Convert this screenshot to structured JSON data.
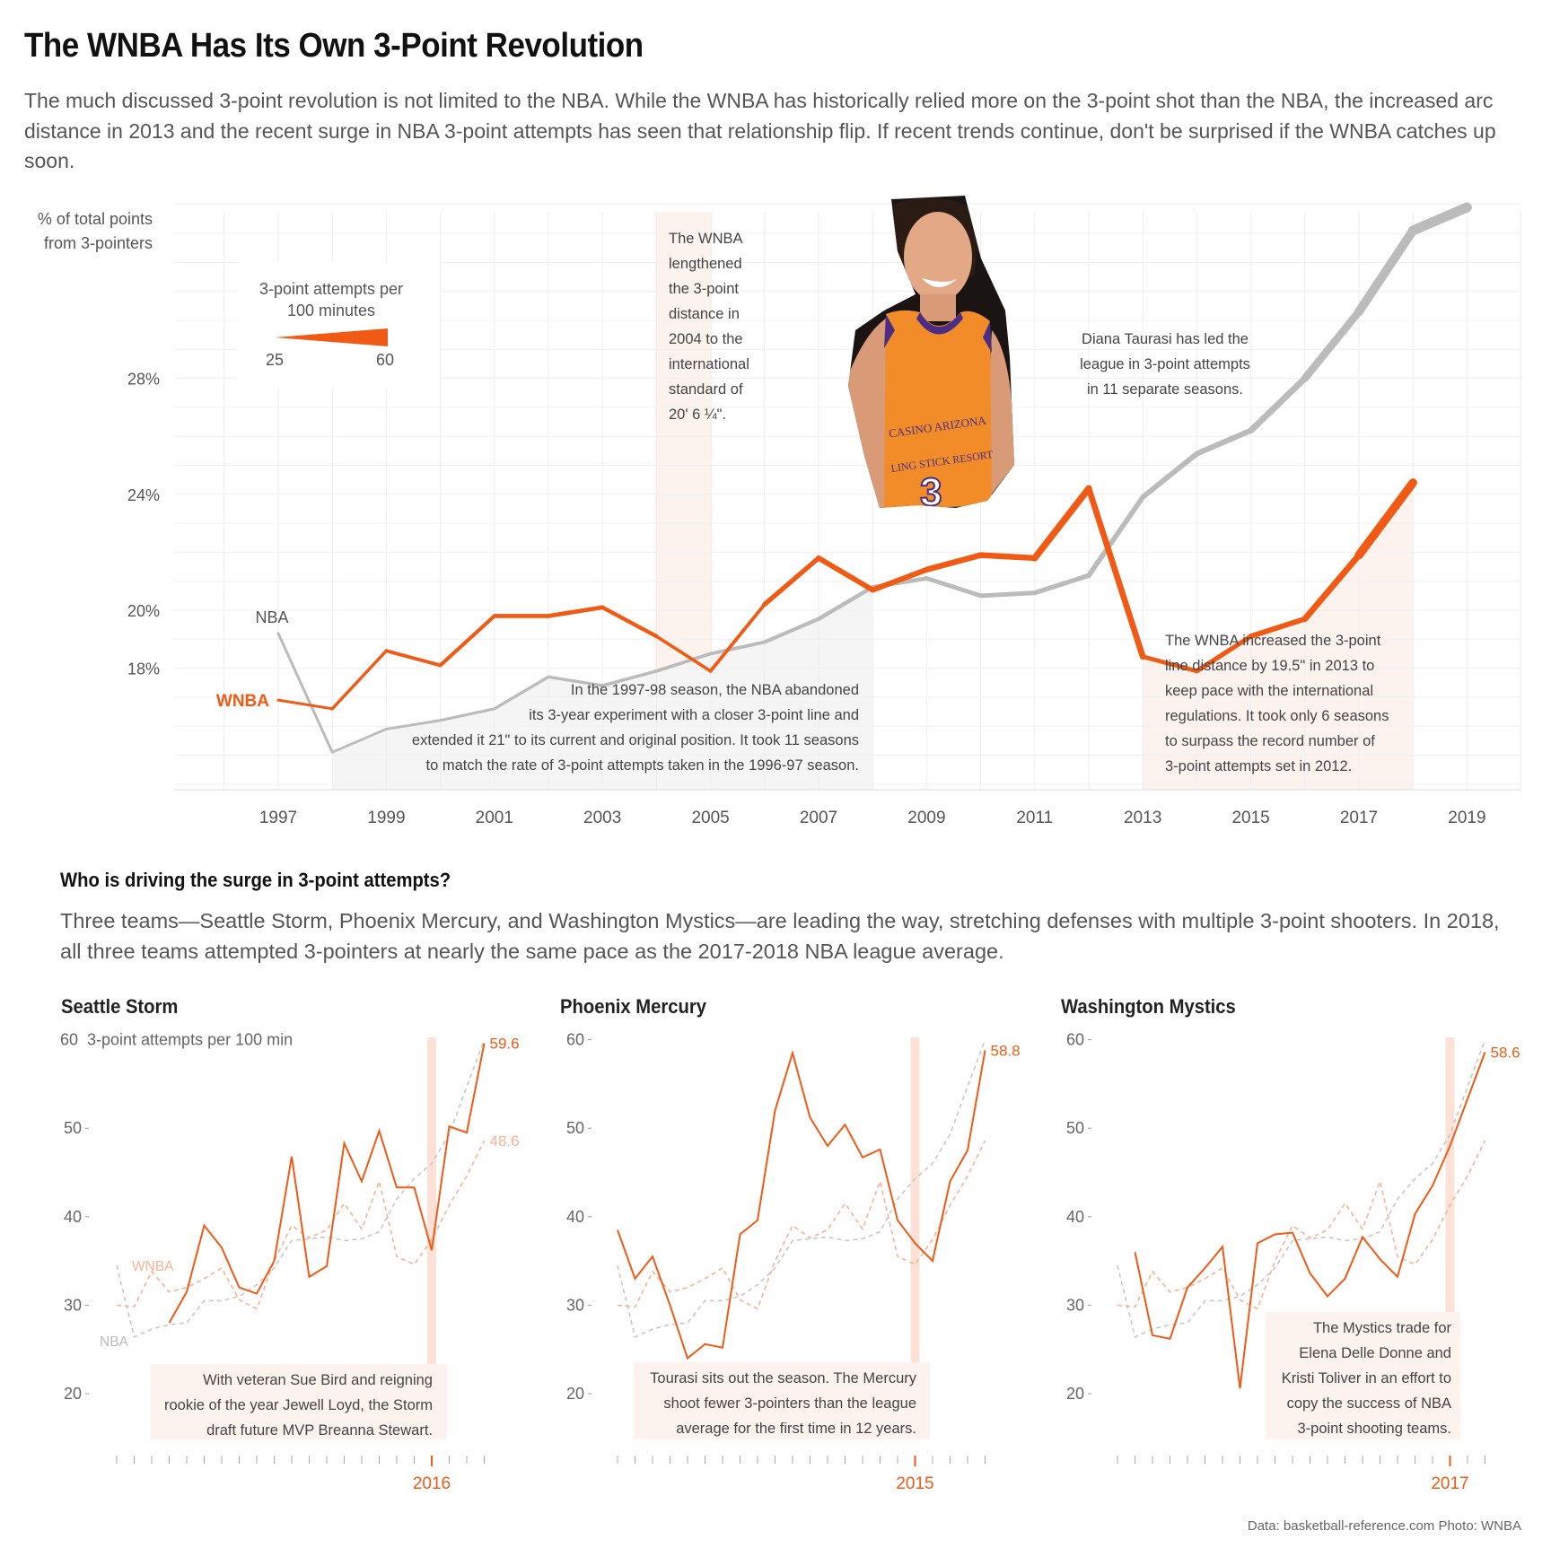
{
  "header": {
    "title": "The WNBA Has Its Own 3-Point Revolution",
    "subtitle": "The much discussed 3-point revolution is not limited to the NBA. While the WNBA has historically relied more on the 3-point shot than the NBA, the increased arc distance in 2013 and the recent surge in NBA 3-point attempts has seen that relationship flip. If recent trends continue, don't be surprised if the WNBA catches up soon."
  },
  "colors": {
    "wnba": "#f05a15",
    "nba": "#bbbbbb",
    "shade_orange": "#fdf1ea",
    "shade_gray": "#f5f5f5",
    "highlight": "#fde0d6"
  },
  "chart_data": [
    {
      "type": "line",
      "ylabel": "% of total points from 3-pointers",
      "ylim": [
        14,
        34
      ],
      "yticks": [
        "18%",
        "20%",
        "24%",
        "28%"
      ],
      "xticks": [
        "1997",
        "1999",
        "2001",
        "2003",
        "2005",
        "2007",
        "2009",
        "2011",
        "2013",
        "2015",
        "2017",
        "2019"
      ],
      "legend_title": "3-point attempts per 100 minutes",
      "legend_min": "25",
      "legend_max": "60",
      "series": [
        {
          "name": "WNBA",
          "x": [
            1997,
            1998,
            1999,
            2000,
            2001,
            2002,
            2003,
            2004,
            2005,
            2006,
            2007,
            2008,
            2009,
            2010,
            2011,
            2012,
            2013,
            2014,
            2015,
            2016,
            2017,
            2018
          ],
          "values": [
            16.9,
            16.6,
            18.6,
            18.1,
            19.8,
            19.8,
            20.1,
            19.1,
            17.9,
            20.2,
            21.8,
            20.7,
            21.4,
            21.9,
            21.8,
            24.2,
            18.4,
            17.9,
            19.1,
            19.7,
            21.9,
            24.4
          ],
          "attempts": [
            29,
            28,
            32,
            31,
            34,
            34,
            35,
            32,
            29,
            34,
            39,
            38,
            40,
            41,
            40,
            48,
            35,
            34,
            38,
            39,
            45,
            57
          ]
        },
        {
          "name": "NBA",
          "x": [
            1997,
            1998,
            1999,
            2000,
            2001,
            2002,
            2003,
            2004,
            2005,
            2006,
            2007,
            2008,
            2009,
            2010,
            2011,
            2012,
            2013,
            2014,
            2015,
            2016,
            2017,
            2018,
            2019
          ],
          "values": [
            19.2,
            15.1,
            15.9,
            16.2,
            16.6,
            17.7,
            17.4,
            17.9,
            18.5,
            18.9,
            19.7,
            20.8,
            21.1,
            20.5,
            20.6,
            21.2,
            23.9,
            25.4,
            26.2,
            28.0,
            30.3,
            33.1,
            33.9
          ],
          "attempts": [
            30,
            27,
            28,
            29,
            29,
            30,
            30,
            31,
            31,
            32,
            33,
            34,
            35,
            35,
            36,
            37,
            38,
            39,
            40,
            45,
            50,
            55,
            58
          ]
        }
      ],
      "annotations": {
        "nba_label": "NBA",
        "wnba_label": "WNBA",
        "a2004": [
          "The WNBA",
          "lengthened",
          "the 3-point",
          "distance in",
          "2004 to the",
          "international",
          "standard  of",
          "20' 6 ¼\"."
        ],
        "taurasi": [
          "Diana Taurasi has led the",
          "league in 3-point attempts",
          "in 11 separate seasons."
        ],
        "a1997": [
          "In the 1997-98 season, the NBA abandoned",
          "its 3-year experiment with a closer 3-point line and",
          "extended it 21\" to its current and original position. It took 11 seasons",
          "to match the rate of 3-point attempts taken in the 1996-97 season."
        ],
        "a2013": [
          "The WNBA increased the 3-point",
          "line distance by 19.5\" in 2013 to",
          "keep pace with the international",
          "regulations. It took only 6 seasons",
          "to surpass the record number of",
          "3-point attempts set in 2012."
        ]
      }
    },
    {
      "type": "line",
      "title": "Seattle Storm",
      "ylabel": "3-point attempts per 100 min",
      "ylim": [
        15,
        62
      ],
      "yticks": [
        "60",
        "50",
        "40",
        "30",
        "20"
      ],
      "highlight_year": "2016",
      "end_label": "59.6",
      "wnba_end_label": "48.6",
      "wnba_label": "WNBA",
      "nba_label": "NBA",
      "team": [
        null,
        null,
        null,
        28,
        31.5,
        39,
        36.5,
        32,
        31.3,
        35,
        46.8,
        33.2,
        34.4,
        48.3,
        44,
        49.7,
        43.3,
        43.3,
        36.2,
        50.2,
        49.5,
        59.6
      ],
      "note": [
        "With veteran Sue Bird and reigning",
        "rookie of the year Jewell Loyd, the Storm",
        "draft future MVP Breanna Stewart."
      ]
    },
    {
      "type": "line",
      "title": "Phoenix Mercury",
      "ylim": [
        15,
        62
      ],
      "yticks": [
        "60",
        "50",
        "40",
        "30",
        "20"
      ],
      "highlight_year": "2015",
      "end_label": "58.8",
      "team": [
        38.5,
        33,
        35.5,
        30,
        24,
        25.6,
        25.2,
        38,
        39.6,
        52,
        58.5,
        51.2,
        48,
        50.4,
        46.7,
        47.6,
        39.6,
        37,
        35,
        44,
        47.5,
        58.8
      ],
      "note": [
        "Tourasi sits out the season. The Mercury",
        "shoot fewer 3-pointers than the league",
        "average for the first time in 12 years."
      ]
    },
    {
      "type": "line",
      "title": "Washington Mystics",
      "ylim": [
        15,
        62
      ],
      "yticks": [
        "60",
        "50",
        "40",
        "30",
        "20"
      ],
      "highlight_year": "2017",
      "end_label": "58.6",
      "team": [
        36,
        26.6,
        26.2,
        32,
        34.2,
        36.6,
        20.6,
        37,
        38,
        38.2,
        33.6,
        31,
        33,
        37.7,
        35.2,
        33.2,
        40.3,
        43.5,
        48,
        53.3,
        58.6
      ],
      "note": [
        "The Mystics trade for",
        "Elena Delle Donne and",
        "Kristi Toliver in an effort to",
        "copy the success of NBA",
        "3-point shooting teams."
      ]
    }
  ],
  "small_multiples": {
    "wnba_avg": [
      30,
      29.8,
      33.8,
      31.5,
      32,
      33,
      34.2,
      30.6,
      29.6,
      35,
      39,
      37.6,
      38.5,
      41.5,
      38.6,
      44,
      35.5,
      34.6,
      37.4,
      41.3,
      44.6,
      48.6
    ],
    "nba_avg": [
      34.5,
      26.4,
      27.3,
      27.8,
      28,
      30.5,
      30.5,
      31,
      32.3,
      34.2,
      37.3,
      37.5,
      37.7,
      37.3,
      37.5,
      38.3,
      42,
      44.3,
      46,
      49.3,
      54.7,
      60
    ]
  },
  "section2": {
    "title": "Who is driving the surge in 3-point attempts?",
    "subtitle": "Three teams—Seattle Storm, Phoenix Mercury, and Washington Mystics—are leading the way, stretching defenses with multiple 3-point shooters. In 2018, all three teams attempted 3-pointers at nearly the same pace as the 2017-2018 NBA league average."
  },
  "credit": "Data: basketball-reference.com   Photo: WNBA",
  "photo": {
    "jersey_line1": "CASINO ARIZONA",
    "jersey_line2": "LING STICK RESORT",
    "number": "3"
  }
}
